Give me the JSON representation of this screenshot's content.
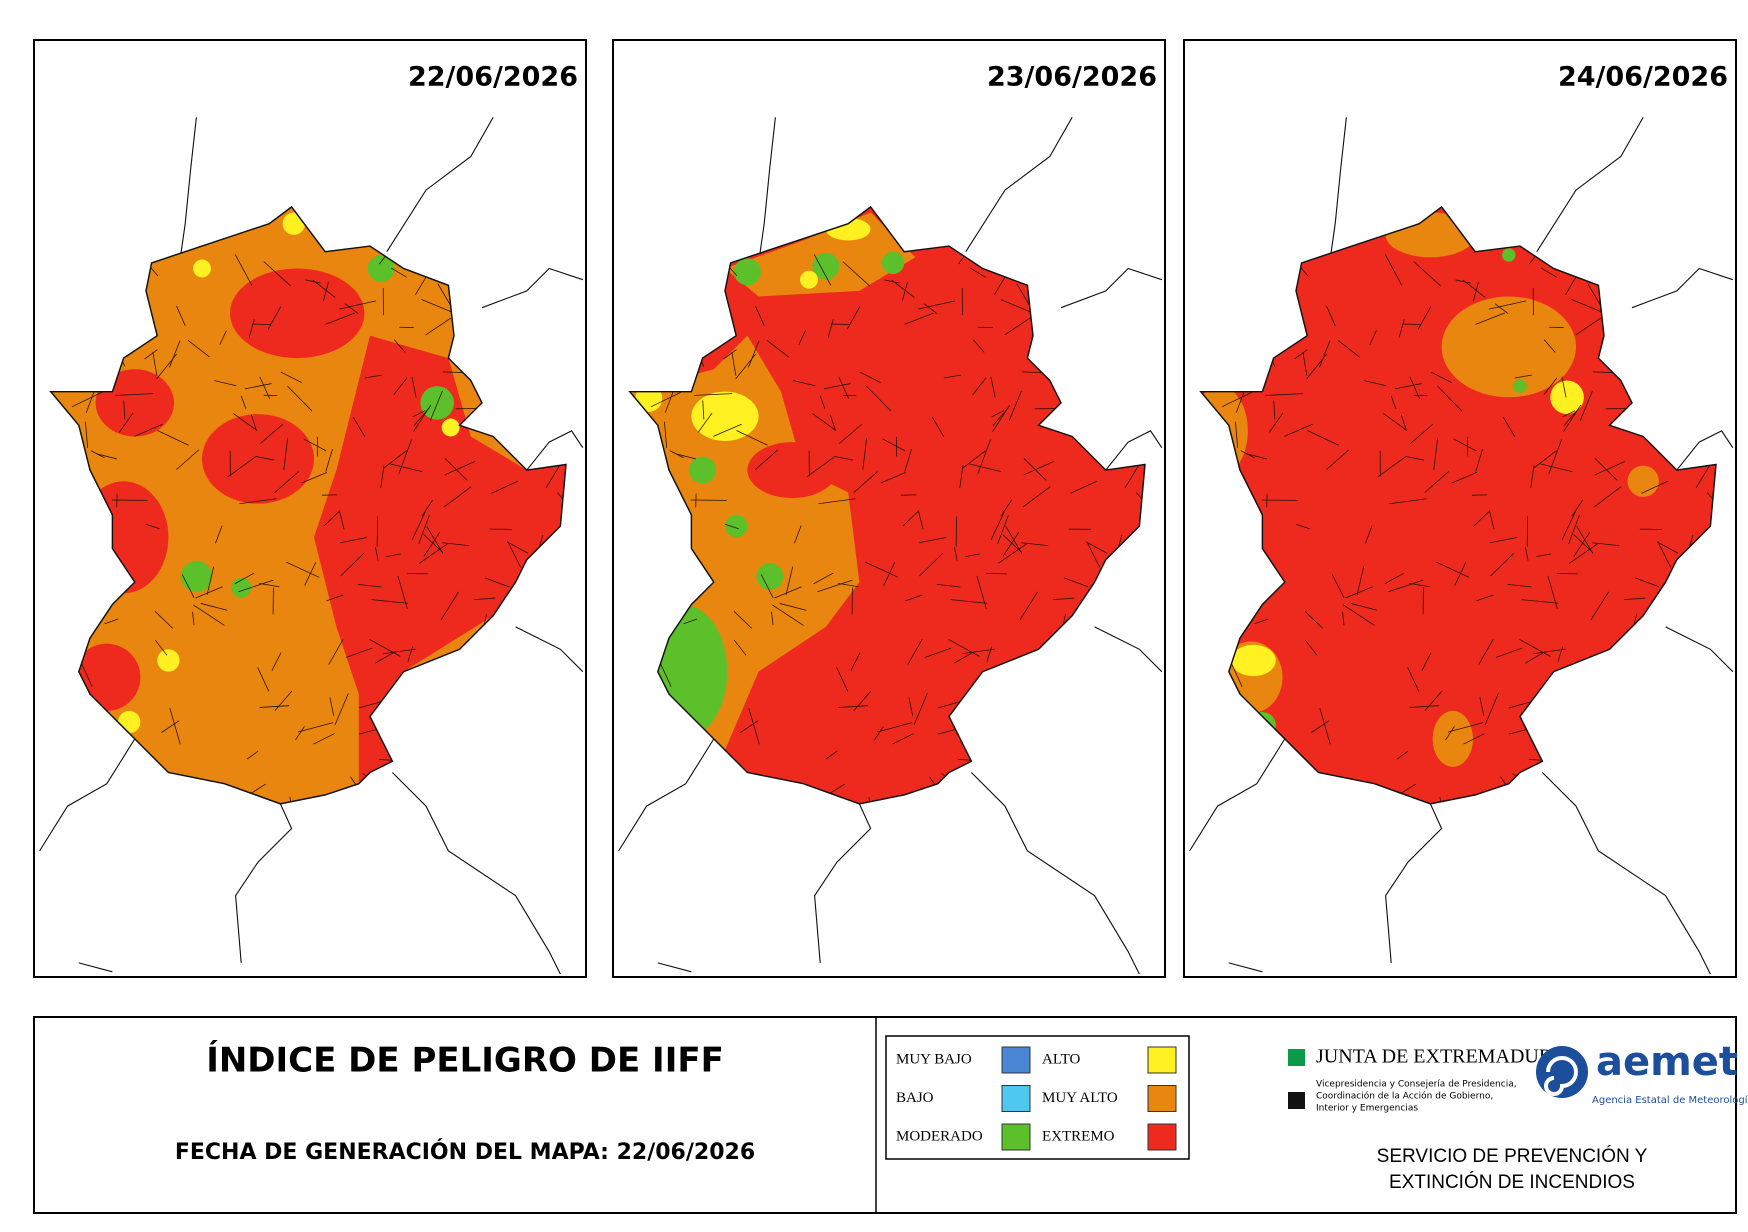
{
  "maps": [
    {
      "date": "22/06/2026"
    },
    {
      "date": "23/06/2026"
    },
    {
      "date": "24/06/2026"
    }
  ],
  "footer": {
    "title": "ÍNDICE DE PELIGRO DE IIFF",
    "generation_date": "FECHA DE GENERACIÓN DEL MAPA: 22/06/2026"
  },
  "legend": [
    {
      "label": "MUY BAJO",
      "color": "#4a86d4"
    },
    {
      "label": "BAJO",
      "color": "#4fc8f0"
    },
    {
      "label": "MODERADO",
      "color": "#5cc02a"
    },
    {
      "label": "ALTO",
      "color": "#fff021"
    },
    {
      "label": "MUY ALTO",
      "color": "#e8860f"
    },
    {
      "label": "EXTREMO",
      "color": "#ee2a1e"
    }
  ],
  "logos": {
    "junta": "JUNTA DE EXTREMADURA",
    "junta_sub": [
      "Vicepresidencia y Consejería de Presidencia,",
      "Coordinación de la Acción de Gobierno,",
      "Interior y Emergencias"
    ],
    "aemet": "aemet",
    "aemet_sub": "Agencia Estatal de Meteorología"
  },
  "service": [
    "SERVICIO DE PREVENCIÓN Y",
    "EXTINCIÓN DE INCENDIOS"
  ]
}
